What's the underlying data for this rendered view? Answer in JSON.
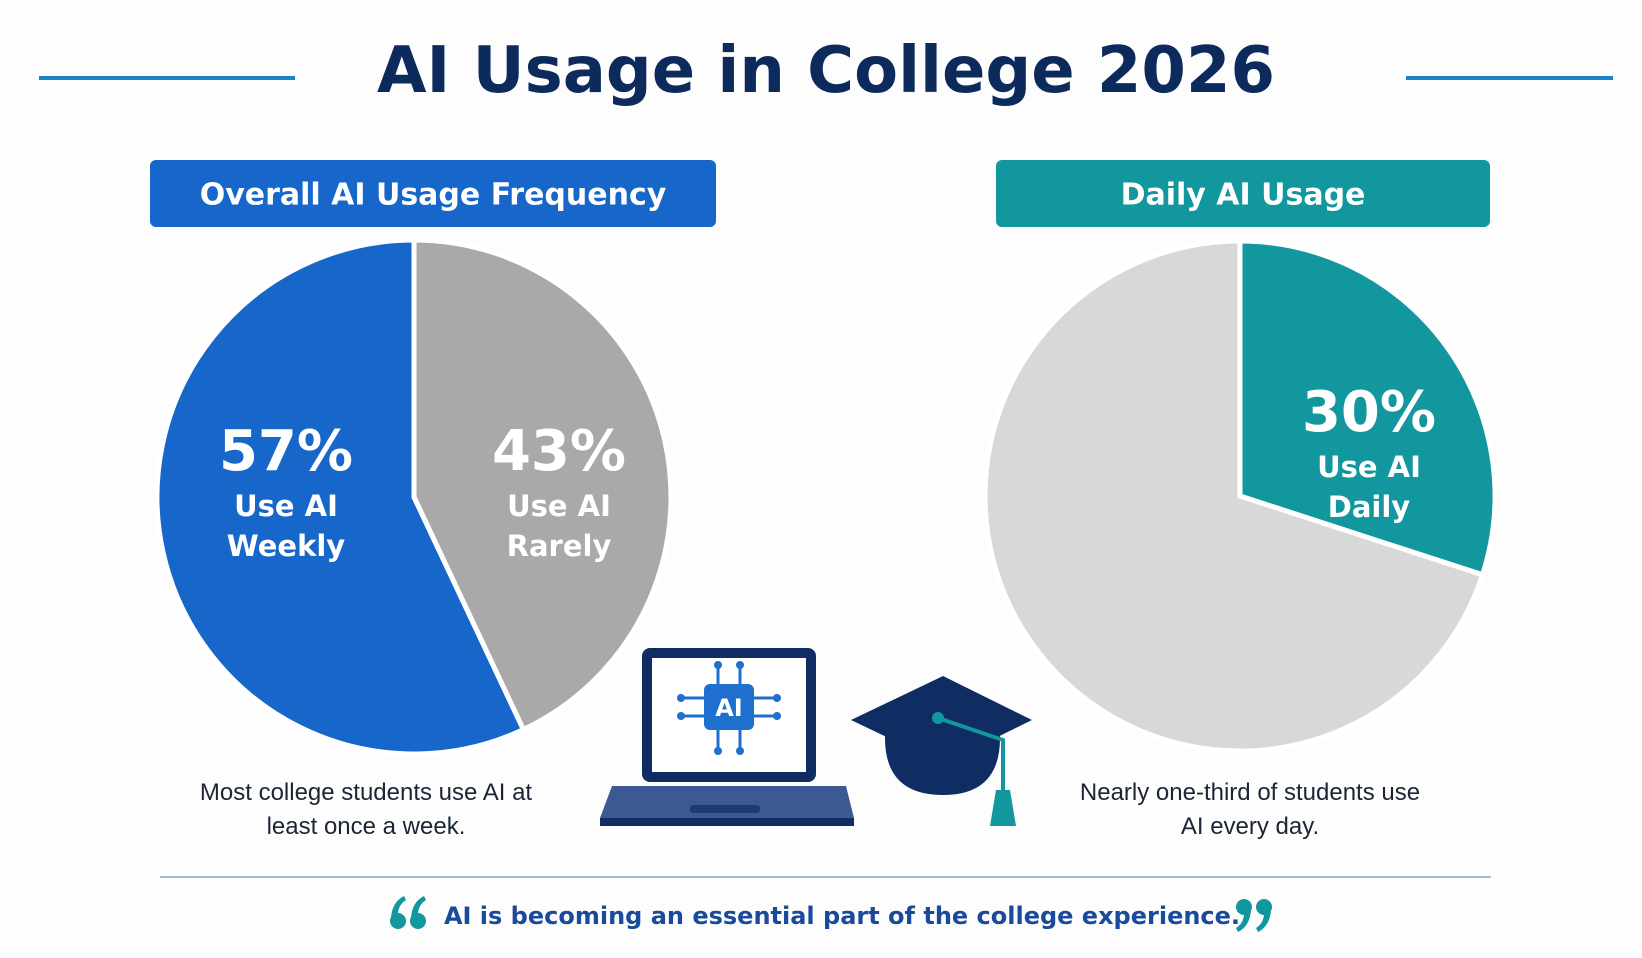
{
  "title": "AI Usage in College 2026",
  "chart_data": [
    {
      "type": "pie",
      "title": "Overall AI Usage Frequency",
      "categories": [
        "Use AI Weekly",
        "Use AI Rarely"
      ],
      "values": [
        57,
        43
      ],
      "value_labels": [
        "57%",
        "43%"
      ],
      "colors": [
        "#1766c9",
        "#a9a9a9"
      ],
      "caption": "Most college students use AI at least once a week."
    },
    {
      "type": "pie",
      "title": "Daily AI Usage",
      "categories": [
        "Use AI Daily",
        null
      ],
      "values": [
        30,
        70
      ],
      "value_labels": [
        "30%",
        null
      ],
      "colors": [
        "#13979e",
        "#d8d8d8"
      ],
      "caption": "Nearly one-third of students use AI every day."
    }
  ],
  "icon_label": "AI",
  "quote": "AI is becoming an essential part of the college experience."
}
